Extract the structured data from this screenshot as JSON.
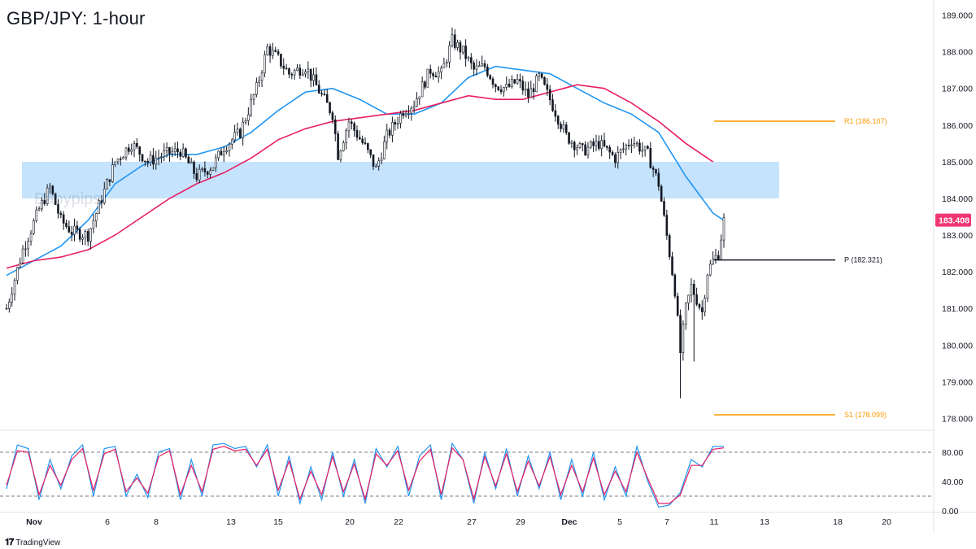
{
  "header": {
    "title": "GBP/JPY: 1-hour"
  },
  "watermark": "Babypips",
  "footer": {
    "brand": "TradingView",
    "brand_icon": "tradingview-logo-icon"
  },
  "colors": {
    "ma_fast": "#2196f3",
    "ma_slow": "#e91e63",
    "zone": "#bbdefb",
    "pivot_line": "#131722",
    "r1_s1_line": "#ff9800",
    "price_badge": "#f23673",
    "stoch_k": "#2196f3",
    "stoch_d": "#e91e63"
  },
  "chart_data": {
    "type": "candlestick",
    "symbol": "GBP/JPY",
    "timeframe": "1-hour",
    "x_tick_labels": [
      "Nov",
      "6",
      "8",
      "13",
      "15",
      "20",
      "22",
      "27",
      "29",
      "Dec",
      "5",
      "7",
      "11",
      "13",
      "18",
      "20"
    ],
    "ylim": [
      177.7,
      189.3
    ],
    "y_ticks": [
      178.0,
      179.0,
      180.0,
      181.0,
      182.0,
      183.0,
      184.0,
      185.0,
      186.0,
      187.0,
      188.0,
      189.0
    ],
    "y_tick_labels": [
      "178.000",
      "179.000",
      "180.000",
      "181.000",
      "182.000",
      "183.000",
      "184.000",
      "185.000",
      "186.000",
      "187.000",
      "188.000",
      "189.000"
    ],
    "last_price": 183.408,
    "last_price_label": "183.408",
    "price_path": [
      [
        0,
        181.0
      ],
      [
        3,
        182.6
      ],
      [
        6,
        183.7
      ],
      [
        8,
        184.3
      ],
      [
        10,
        183.4
      ],
      [
        12,
        183.1
      ],
      [
        15,
        183.0
      ],
      [
        20,
        185.0
      ],
      [
        23,
        185.5
      ],
      [
        26,
        185.0
      ],
      [
        29,
        185.2
      ],
      [
        32,
        185.3
      ],
      [
        35,
        184.6
      ],
      [
        38,
        184.9
      ],
      [
        40,
        185.4
      ],
      [
        43,
        185.8
      ],
      [
        46,
        187.0
      ],
      [
        48,
        188.1
      ],
      [
        50,
        187.8
      ],
      [
        52,
        187.4
      ],
      [
        55,
        187.6
      ],
      [
        58,
        186.8
      ],
      [
        60,
        186.3
      ],
      [
        61,
        185.2
      ],
      [
        63,
        186.1
      ],
      [
        66,
        185.4
      ],
      [
        68,
        184.8
      ],
      [
        70,
        185.7
      ],
      [
        73,
        186.4
      ],
      [
        75,
        186.6
      ],
      [
        78,
        187.5
      ],
      [
        80,
        187.4
      ],
      [
        82,
        188.3
      ],
      [
        84,
        188.0
      ],
      [
        86,
        187.5
      ],
      [
        88,
        187.6
      ],
      [
        90,
        187.1
      ],
      [
        92,
        187.0
      ],
      [
        94,
        187.2
      ],
      [
        96,
        186.8
      ],
      [
        98,
        187.3
      ],
      [
        100,
        186.7
      ],
      [
        103,
        185.7
      ],
      [
        106,
        185.3
      ],
      [
        109,
        185.5
      ],
      [
        112,
        185.1
      ],
      [
        115,
        185.6
      ],
      [
        118,
        185.2
      ],
      [
        120,
        184.4
      ],
      [
        122,
        182.5
      ],
      [
        123,
        181.5
      ],
      [
        124,
        179.8
      ],
      [
        125,
        181.0
      ],
      [
        126,
        181.6
      ],
      [
        128,
        180.9
      ],
      [
        129,
        182.0
      ],
      [
        130,
        182.3
      ],
      [
        131,
        182.5
      ],
      [
        132,
        183.4
      ]
    ],
    "moving_averages": [
      {
        "name": "fast",
        "points": [
          [
            0,
            181.9
          ],
          [
            5,
            182.3
          ],
          [
            10,
            182.7
          ],
          [
            15,
            183.4
          ],
          [
            20,
            184.4
          ],
          [
            25,
            184.9
          ],
          [
            30,
            185.2
          ],
          [
            35,
            185.2
          ],
          [
            40,
            185.4
          ],
          [
            45,
            185.8
          ],
          [
            50,
            186.4
          ],
          [
            55,
            186.9
          ],
          [
            60,
            187.0
          ],
          [
            65,
            186.7
          ],
          [
            70,
            186.3
          ],
          [
            75,
            186.3
          ],
          [
            80,
            186.6
          ],
          [
            85,
            187.3
          ],
          [
            90,
            187.6
          ],
          [
            95,
            187.5
          ],
          [
            100,
            187.4
          ],
          [
            105,
            187.0
          ],
          [
            110,
            186.6
          ],
          [
            115,
            186.3
          ],
          [
            120,
            185.8
          ],
          [
            125,
            184.6
          ],
          [
            130,
            183.6
          ],
          [
            132,
            183.4
          ]
        ]
      },
      {
        "name": "slow",
        "points": [
          [
            0,
            182.1
          ],
          [
            5,
            182.3
          ],
          [
            10,
            182.4
          ],
          [
            15,
            182.6
          ],
          [
            20,
            183.0
          ],
          [
            25,
            183.5
          ],
          [
            30,
            184.0
          ],
          [
            35,
            184.4
          ],
          [
            40,
            184.7
          ],
          [
            45,
            185.1
          ],
          [
            50,
            185.6
          ],
          [
            55,
            185.9
          ],
          [
            60,
            186.1
          ],
          [
            65,
            186.2
          ],
          [
            70,
            186.3
          ],
          [
            75,
            186.4
          ],
          [
            80,
            186.6
          ],
          [
            85,
            186.8
          ],
          [
            90,
            186.7
          ],
          [
            95,
            186.7
          ],
          [
            100,
            186.9
          ],
          [
            105,
            187.1
          ],
          [
            110,
            187.0
          ],
          [
            115,
            186.6
          ],
          [
            120,
            186.1
          ],
          [
            125,
            185.5
          ],
          [
            130,
            185.0
          ]
        ]
      }
    ],
    "zones": [
      {
        "low": 184.0,
        "high": 185.0
      }
    ],
    "levels": [
      {
        "name": "R1",
        "label": "R1 (186.107)",
        "value": 186.107,
        "color": "#ff9800"
      },
      {
        "name": "P",
        "label": "P (182.321)",
        "value": 182.321,
        "color": "#131722"
      },
      {
        "name": "S1",
        "label": "S1 (178.099)",
        "value": 178.099,
        "color": "#ff9800"
      }
    ],
    "indicator": {
      "name": "Stochastic",
      "ylim": [
        0,
        100
      ],
      "y_ticks": [
        0,
        40,
        80
      ],
      "y_tick_labels": [
        "0.00",
        "40.00",
        "80.00"
      ],
      "bands": [
        20,
        80
      ],
      "k_path": [
        [
          0,
          30
        ],
        [
          2,
          90
        ],
        [
          4,
          85
        ],
        [
          6,
          15
        ],
        [
          8,
          70
        ],
        [
          10,
          30
        ],
        [
          12,
          75
        ],
        [
          14,
          90
        ],
        [
          16,
          20
        ],
        [
          18,
          85
        ],
        [
          20,
          88
        ],
        [
          22,
          20
        ],
        [
          24,
          50
        ],
        [
          26,
          18
        ],
        [
          28,
          80
        ],
        [
          30,
          85
        ],
        [
          32,
          15
        ],
        [
          34,
          70
        ],
        [
          36,
          20
        ],
        [
          38,
          90
        ],
        [
          40,
          92
        ],
        [
          42,
          85
        ],
        [
          44,
          88
        ],
        [
          46,
          60
        ],
        [
          48,
          90
        ],
        [
          50,
          20
        ],
        [
          52,
          75
        ],
        [
          54,
          10
        ],
        [
          56,
          60
        ],
        [
          58,
          15
        ],
        [
          60,
          80
        ],
        [
          62,
          20
        ],
        [
          64,
          70
        ],
        [
          66,
          10
        ],
        [
          68,
          85
        ],
        [
          70,
          60
        ],
        [
          72,
          88
        ],
        [
          74,
          20
        ],
        [
          76,
          75
        ],
        [
          78,
          90
        ],
        [
          80,
          15
        ],
        [
          82,
          92
        ],
        [
          84,
          70
        ],
        [
          86,
          10
        ],
        [
          88,
          80
        ],
        [
          90,
          30
        ],
        [
          92,
          85
        ],
        [
          94,
          20
        ],
        [
          96,
          75
        ],
        [
          98,
          30
        ],
        [
          100,
          80
        ],
        [
          102,
          15
        ],
        [
          104,
          70
        ],
        [
          106,
          20
        ],
        [
          108,
          80
        ],
        [
          110,
          15
        ],
        [
          112,
          60
        ],
        [
          114,
          20
        ],
        [
          116,
          88
        ],
        [
          118,
          40
        ],
        [
          120,
          5
        ],
        [
          122,
          8
        ],
        [
          124,
          25
        ],
        [
          126,
          70
        ],
        [
          128,
          60
        ],
        [
          130,
          88
        ],
        [
          132,
          88
        ]
      ],
      "d_path": [
        [
          0,
          35
        ],
        [
          2,
          82
        ],
        [
          4,
          80
        ],
        [
          6,
          22
        ],
        [
          8,
          62
        ],
        [
          10,
          35
        ],
        [
          12,
          70
        ],
        [
          14,
          85
        ],
        [
          16,
          28
        ],
        [
          18,
          78
        ],
        [
          20,
          84
        ],
        [
          22,
          26
        ],
        [
          24,
          45
        ],
        [
          26,
          24
        ],
        [
          28,
          74
        ],
        [
          30,
          82
        ],
        [
          32,
          22
        ],
        [
          34,
          62
        ],
        [
          36,
          26
        ],
        [
          38,
          84
        ],
        [
          40,
          88
        ],
        [
          42,
          82
        ],
        [
          44,
          84
        ],
        [
          46,
          62
        ],
        [
          48,
          84
        ],
        [
          50,
          28
        ],
        [
          52,
          68
        ],
        [
          54,
          16
        ],
        [
          56,
          54
        ],
        [
          58,
          22
        ],
        [
          60,
          74
        ],
        [
          62,
          26
        ],
        [
          64,
          64
        ],
        [
          66,
          16
        ],
        [
          68,
          78
        ],
        [
          70,
          62
        ],
        [
          72,
          82
        ],
        [
          74,
          28
        ],
        [
          76,
          68
        ],
        [
          78,
          84
        ],
        [
          80,
          22
        ],
        [
          82,
          86
        ],
        [
          84,
          70
        ],
        [
          86,
          16
        ],
        [
          88,
          74
        ],
        [
          90,
          34
        ],
        [
          92,
          78
        ],
        [
          94,
          26
        ],
        [
          96,
          68
        ],
        [
          98,
          34
        ],
        [
          100,
          74
        ],
        [
          102,
          22
        ],
        [
          104,
          62
        ],
        [
          106,
          26
        ],
        [
          108,
          72
        ],
        [
          110,
          22
        ],
        [
          112,
          54
        ],
        [
          114,
          26
        ],
        [
          116,
          80
        ],
        [
          118,
          44
        ],
        [
          120,
          10
        ],
        [
          122,
          10
        ],
        [
          124,
          22
        ],
        [
          126,
          62
        ],
        [
          128,
          62
        ],
        [
          130,
          84
        ],
        [
          132,
          86
        ]
      ]
    }
  }
}
